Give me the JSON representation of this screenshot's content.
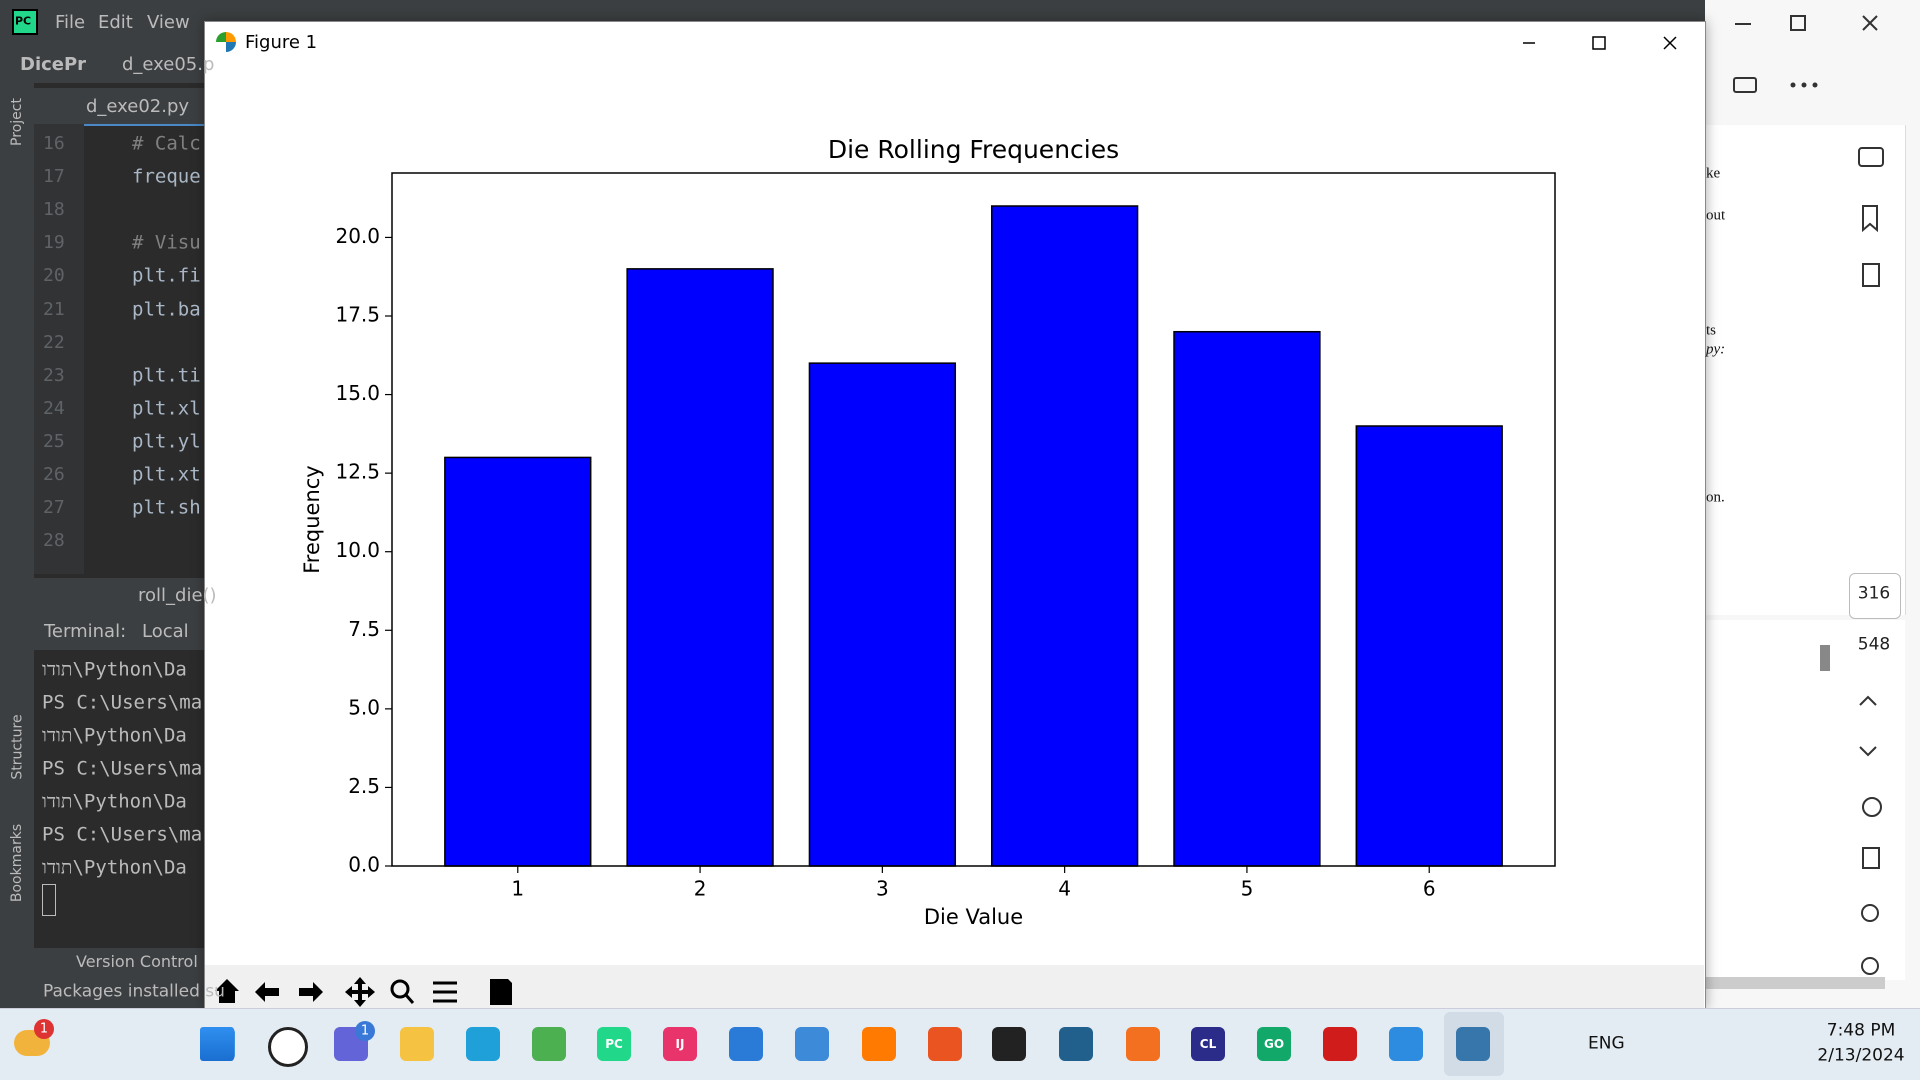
{
  "ide": {
    "logo": "PC",
    "menu": [
      "File",
      "Edit",
      "View"
    ],
    "breadcrumb": [
      "DicePr",
      "d_exe05.p"
    ],
    "tab": "d_exe02.py",
    "side_tabs": [
      "Project",
      "Structure",
      "Bookmarks"
    ],
    "code": [
      {
        "line": 16,
        "text": "# Calc"
      },
      {
        "line": 17,
        "text": "freque"
      },
      {
        "line": 18
      },
      {
        "line": 19,
        "text": "# Visu"
      },
      {
        "line": 20,
        "text": "plt.fi"
      },
      {
        "line": 21,
        "text": "plt.ba"
      },
      {
        "line": 22
      },
      {
        "line": 23,
        "text": "plt.ti"
      },
      {
        "line": 24,
        "text": "plt.xl"
      },
      {
        "line": 25,
        "text": "plt.yl"
      },
      {
        "line": 26,
        "text": "plt.xt"
      },
      {
        "line": 27,
        "text": "plt.sh"
      },
      {
        "line": 28
      }
    ],
    "function": "roll_die()",
    "terminal": {
      "label": "Terminal:",
      "tab": "Local",
      "lines": [
        "תודו\\Python\\Da",
        "PS C:\\Users\\ma",
        "תודו\\Python\\Da",
        "PS C:\\Users\\ma",
        "תודו\\Python\\Da",
        "PS C:\\Users\\ma",
        "תודו\\Python\\Da"
      ]
    },
    "status": {
      "version_control": "Version Control",
      "message": "Packages installed su"
    }
  },
  "figure_window": {
    "title": "Figure 1"
  },
  "chart_data": {
    "type": "bar",
    "title": "Die Rolling Frequencies",
    "xlabel": "Die Value",
    "ylabel": "Frequency",
    "x": [
      1,
      2,
      3,
      4,
      5,
      6
    ],
    "values": [
      13,
      19,
      16,
      21,
      17,
      14
    ],
    "color": "#0000ff",
    "edgecolor": "#000000",
    "xlim": [
      0.31,
      6.69
    ],
    "ylim": [
      0,
      22.05
    ],
    "xticks": [
      1,
      2,
      3,
      4,
      5,
      6
    ],
    "yticks": [
      {
        "value": 0,
        "label": "0.0"
      },
      2.5,
      {
        "value": 5,
        "label": "5.0"
      },
      7.5,
      {
        "value": 10,
        "label": "10.0"
      },
      12.5,
      {
        "value": 15,
        "label": "15.0"
      },
      17.5,
      {
        "value": 20,
        "label": "20.0"
      }
    ],
    "grid": false
  },
  "pdf_viewer": {
    "page": "316",
    "total": "548",
    "fragments": [
      "ke",
      "out",
      "ts",
      "py:",
      "on."
    ]
  },
  "taskbar": {
    "badges": [
      "1",
      "1"
    ],
    "icon_labels": [
      "PC",
      "IJ",
      "GO",
      "CL"
    ],
    "language": "ENG",
    "time": "7:48 PM",
    "date": "2/13/2024"
  }
}
